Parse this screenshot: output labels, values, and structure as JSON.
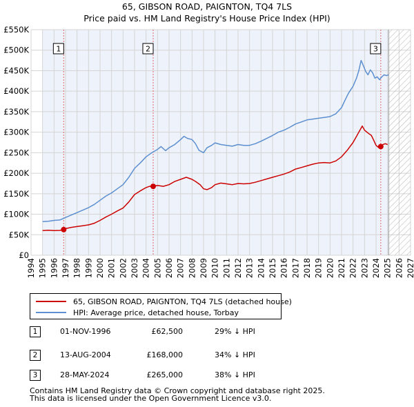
{
  "chart_data": {
    "type": "line",
    "title": "65, GIBSON ROAD, PAIGNTON, TQ4 7LS",
    "subtitle": "Price paid vs. HM Land Registry's House Price Index (HPI)",
    "xlim": [
      1994,
      2027
    ],
    "ylim": [
      0,
      550000
    ],
    "x_ticks": [
      "1994",
      "1995",
      "1996",
      "1997",
      "1998",
      "1999",
      "2000",
      "2001",
      "2002",
      "2003",
      "2004",
      "2005",
      "2006",
      "2007",
      "2008",
      "2009",
      "2010",
      "2011",
      "2012",
      "2013",
      "2014",
      "2015",
      "2016",
      "2017",
      "2018",
      "2019",
      "2020",
      "2021",
      "2022",
      "2023",
      "2024",
      "2025",
      "2026",
      "2027"
    ],
    "y_ticks": [
      {
        "value": 0,
        "label": "£0"
      },
      {
        "value": 50000,
        "label": "£50K"
      },
      {
        "value": 100000,
        "label": "£100K"
      },
      {
        "value": 150000,
        "label": "£150K"
      },
      {
        "value": 200000,
        "label": "£200K"
      },
      {
        "value": 250000,
        "label": "£250K"
      },
      {
        "value": 300000,
        "label": "£300K"
      },
      {
        "value": 350000,
        "label": "£350K"
      },
      {
        "value": 400000,
        "label": "£400K"
      },
      {
        "value": 450000,
        "label": "£450K"
      },
      {
        "value": 500000,
        "label": "£500K"
      },
      {
        "value": 550000,
        "label": "£550K"
      }
    ],
    "grid": true,
    "data_start": 1995.0,
    "data_end": 2025.1,
    "series": [
      {
        "name": "65, GIBSON ROAD, PAIGNTON, TQ4 7LS (detached house)",
        "color": "#cc0000",
        "x": [
          1995.0,
          1995.5,
          1996.0,
          1996.5,
          1996.84,
          1997.0,
          1997.5,
          1998.0,
          1998.5,
          1999.0,
          1999.5,
          2000.0,
          2000.5,
          2001.0,
          2001.5,
          2002.0,
          2002.5,
          2003.0,
          2003.5,
          2004.0,
          2004.3,
          2004.62,
          2005.0,
          2005.5,
          2006.0,
          2006.5,
          2007.0,
          2007.5,
          2008.0,
          2008.3,
          2008.7,
          2009.0,
          2009.3,
          2009.7,
          2010.0,
          2010.5,
          2011.0,
          2011.5,
          2012.0,
          2012.5,
          2013.0,
          2013.5,
          2014.0,
          2014.5,
          2015.0,
          2015.5,
          2016.0,
          2016.5,
          2017.0,
          2017.5,
          2018.0,
          2018.5,
          2019.0,
          2019.5,
          2020.0,
          2020.5,
          2021.0,
          2021.5,
          2022.0,
          2022.3,
          2022.5,
          2022.8,
          2023.0,
          2023.3,
          2023.6,
          2023.8,
          2024.0,
          2024.2,
          2024.41,
          2024.6,
          2024.8,
          2025.0
        ],
        "y": [
          60000,
          61000,
          60000,
          60500,
          62500,
          65000,
          68000,
          70000,
          72000,
          74000,
          78000,
          85000,
          93000,
          100000,
          108000,
          115000,
          130000,
          148000,
          157000,
          165000,
          168000,
          168000,
          170000,
          168000,
          172000,
          180000,
          185000,
          190000,
          185000,
          180000,
          172000,
          162000,
          160000,
          165000,
          172000,
          176000,
          174000,
          172000,
          175000,
          174000,
          175000,
          178000,
          182000,
          186000,
          190000,
          194000,
          198000,
          203000,
          210000,
          214000,
          218000,
          222000,
          225000,
          226000,
          225000,
          230000,
          240000,
          256000,
          275000,
          290000,
          300000,
          315000,
          305000,
          298000,
          292000,
          280000,
          268000,
          263000,
          265000,
          270000,
          272000,
          270000
        ]
      },
      {
        "name": "HPI: Average price, detached house, Torbay",
        "color": "#5b8fd0",
        "x": [
          1995.0,
          1995.5,
          1996.0,
          1996.5,
          1997.0,
          1997.5,
          1998.0,
          1998.5,
          1999.0,
          1999.5,
          2000.0,
          2000.5,
          2001.0,
          2001.5,
          2002.0,
          2002.5,
          2003.0,
          2003.5,
          2004.0,
          2004.5,
          2005.0,
          2005.3,
          2005.7,
          2006.0,
          2006.5,
          2007.0,
          2007.3,
          2007.6,
          2008.0,
          2008.3,
          2008.6,
          2009.0,
          2009.3,
          2009.7,
          2010.0,
          2010.5,
          2011.0,
          2011.5,
          2012.0,
          2012.5,
          2013.0,
          2013.5,
          2014.0,
          2014.5,
          2015.0,
          2015.5,
          2016.0,
          2016.5,
          2017.0,
          2017.5,
          2018.0,
          2018.5,
          2019.0,
          2019.5,
          2020.0,
          2020.5,
          2021.0,
          2021.3,
          2021.6,
          2022.0,
          2022.3,
          2022.5,
          2022.7,
          2022.9,
          2023.1,
          2023.3,
          2023.5,
          2023.7,
          2023.9,
          2024.1,
          2024.3,
          2024.5,
          2024.7,
          2024.9,
          2025.1
        ],
        "y": [
          82000,
          83000,
          85000,
          86000,
          92000,
          98000,
          104000,
          110000,
          116000,
          124000,
          134000,
          144000,
          152000,
          162000,
          172000,
          190000,
          212000,
          225000,
          240000,
          250000,
          258000,
          265000,
          255000,
          262000,
          270000,
          282000,
          290000,
          285000,
          282000,
          272000,
          256000,
          250000,
          262000,
          268000,
          274000,
          270000,
          268000,
          266000,
          270000,
          268000,
          268000,
          272000,
          278000,
          285000,
          292000,
          300000,
          305000,
          312000,
          320000,
          325000,
          330000,
          332000,
          334000,
          336000,
          338000,
          345000,
          360000,
          378000,
          395000,
          412000,
          432000,
          450000,
          475000,
          462000,
          448000,
          440000,
          452000,
          445000,
          432000,
          435000,
          428000,
          435000,
          440000,
          438000,
          440000
        ]
      }
    ],
    "annotations": [
      {
        "label": "1",
        "x": 1996.84,
        "y": 62500
      },
      {
        "label": "2",
        "x": 2004.62,
        "y": 168000
      },
      {
        "label": "3",
        "x": 2024.41,
        "y": 265000
      }
    ]
  },
  "legend": {
    "items": [
      {
        "label": "65, GIBSON ROAD, PAIGNTON, TQ4 7LS (detached house)",
        "color": "#cc0000"
      },
      {
        "label": "HPI: Average price, detached house, Torbay",
        "color": "#5b8fd0"
      }
    ]
  },
  "sales": [
    {
      "num": "1",
      "date": "01-NOV-1996",
      "price": "£62,500",
      "hpi": "29% ↓ HPI"
    },
    {
      "num": "2",
      "date": "13-AUG-2004",
      "price": "£168,000",
      "hpi": "34% ↓ HPI"
    },
    {
      "num": "3",
      "date": "28-MAY-2024",
      "price": "£265,000",
      "hpi": "38% ↓ HPI"
    }
  ],
  "footer": {
    "line1": "Contains HM Land Registry data © Crown copyright and database right 2025.",
    "line2": "This data is licensed under the Open Government Licence v3.0."
  }
}
